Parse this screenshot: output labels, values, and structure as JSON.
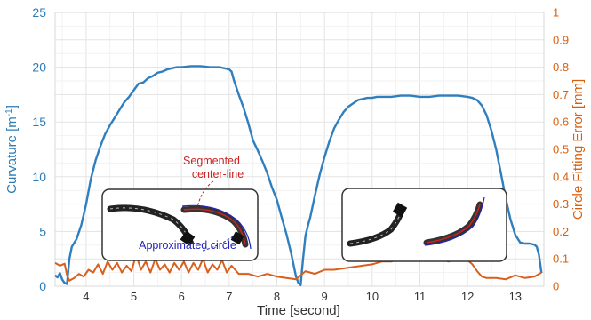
{
  "chart_data": {
    "type": "line",
    "xlabel": "Time [second]",
    "ylabel_left_main": "Curvature [m",
    "ylabel_left_sup": "-1",
    "ylabel_left_end": "]",
    "ylabel_right": "Circle Fitting Error [mm]",
    "xlim": [
      3.35,
      13.6
    ],
    "ylim_left": [
      0,
      25
    ],
    "ylim_right": [
      0,
      1
    ],
    "x_ticks": [
      "4",
      "5",
      "6",
      "7",
      "8",
      "9",
      "10",
      "11",
      "12",
      "13"
    ],
    "y_left_ticks": [
      "0",
      "5",
      "10",
      "15",
      "20",
      "25"
    ],
    "y_right_ticks": [
      "0",
      "0.1",
      "0.2",
      "0.3",
      "0.4",
      "0.5",
      "0.6",
      "0.7",
      "0.8",
      "0.9",
      "1"
    ],
    "grid": true,
    "annotations": {
      "segmented": [
        "Segmented",
        "center-line"
      ],
      "approximated": "Approximated circle"
    },
    "series": [
      {
        "axis": "left",
        "color": "#2f7fbf",
        "x": [
          3.35,
          3.4,
          3.45,
          3.5,
          3.55,
          3.6,
          3.65,
          3.7,
          3.8,
          3.9,
          4.0,
          4.1,
          4.2,
          4.3,
          4.4,
          4.5,
          4.6,
          4.7,
          4.8,
          4.9,
          5.0,
          5.1,
          5.2,
          5.3,
          5.4,
          5.5,
          5.6,
          5.7,
          5.8,
          5.9,
          6.0,
          6.2,
          6.4,
          6.6,
          6.8,
          7.0,
          7.05,
          7.1,
          7.2,
          7.3,
          7.4,
          7.5,
          7.6,
          7.7,
          7.8,
          7.9,
          8.0,
          8.1,
          8.2,
          8.3,
          8.4,
          8.45,
          8.5,
          8.55,
          8.6,
          8.65,
          8.7,
          8.8,
          8.9,
          9.0,
          9.1,
          9.2,
          9.3,
          9.4,
          9.5,
          9.6,
          9.7,
          9.8,
          9.9,
          10.0,
          10.1,
          10.2,
          10.4,
          10.6,
          10.8,
          11.0,
          11.2,
          11.4,
          11.6,
          11.8,
          12.0,
          12.1,
          12.2,
          12.3,
          12.4,
          12.5,
          12.6,
          12.7,
          12.8,
          12.9,
          13.0,
          13.1,
          13.2,
          13.3,
          13.4,
          13.45,
          13.5,
          13.55
        ],
        "y": [
          1.0,
          0.8,
          1.2,
          0.6,
          0.3,
          0.2,
          2.5,
          3.6,
          4.3,
          5.6,
          7.5,
          9.8,
          11.5,
          12.8,
          13.9,
          14.7,
          15.4,
          16.1,
          16.8,
          17.3,
          17.9,
          18.5,
          18.6,
          19.0,
          19.2,
          19.5,
          19.6,
          19.8,
          19.9,
          20.0,
          20.0,
          20.1,
          20.1,
          20.0,
          20.0,
          19.8,
          19.6,
          18.8,
          17.5,
          16.3,
          14.9,
          13.3,
          12.4,
          11.4,
          10.3,
          9.0,
          7.9,
          6.3,
          4.8,
          3.0,
          0.9,
          0.3,
          0.1,
          2.5,
          4.6,
          5.5,
          6.3,
          8.3,
          10.2,
          11.8,
          13.2,
          14.4,
          15.2,
          15.9,
          16.4,
          16.7,
          17.0,
          17.1,
          17.2,
          17.2,
          17.3,
          17.3,
          17.3,
          17.4,
          17.4,
          17.3,
          17.3,
          17.4,
          17.4,
          17.4,
          17.3,
          17.2,
          17.0,
          16.5,
          15.6,
          14.2,
          12.5,
          10.3,
          8.0,
          6.1,
          4.7,
          4.0,
          3.9,
          3.9,
          3.8,
          3.6,
          2.8,
          1.2
        ]
      },
      {
        "axis": "right",
        "color": "#d8601c",
        "x": [
          3.35,
          3.45,
          3.55,
          3.6,
          3.65,
          3.75,
          3.85,
          3.95,
          4.05,
          4.15,
          4.25,
          4.35,
          4.45,
          4.55,
          4.65,
          4.75,
          4.85,
          4.95,
          5.05,
          5.15,
          5.25,
          5.35,
          5.45,
          5.55,
          5.65,
          5.75,
          5.85,
          5.95,
          6.05,
          6.15,
          6.25,
          6.35,
          6.45,
          6.55,
          6.65,
          6.75,
          6.85,
          6.95,
          7.05,
          7.2,
          7.4,
          7.6,
          7.8,
          8.0,
          8.2,
          8.4,
          8.6,
          8.8,
          9.0,
          9.2,
          9.4,
          9.6,
          9.8,
          10.0,
          10.2,
          10.4,
          10.6,
          10.8,
          11.0,
          11.2,
          11.4,
          11.6,
          11.8,
          12.0,
          12.1,
          12.2,
          12.3,
          12.4,
          12.6,
          12.8,
          13.0,
          13.2,
          13.4,
          13.55
        ],
        "y": [
          0.085,
          0.075,
          0.082,
          0.04,
          0.02,
          0.03,
          0.045,
          0.035,
          0.06,
          0.05,
          0.08,
          0.045,
          0.09,
          0.06,
          0.085,
          0.05,
          0.075,
          0.055,
          0.115,
          0.06,
          0.09,
          0.05,
          0.1,
          0.06,
          0.08,
          0.05,
          0.085,
          0.06,
          0.09,
          0.05,
          0.085,
          0.06,
          0.1,
          0.05,
          0.08,
          0.06,
          0.095,
          0.05,
          0.075,
          0.045,
          0.045,
          0.035,
          0.045,
          0.035,
          0.03,
          0.025,
          0.055,
          0.045,
          0.06,
          0.06,
          0.065,
          0.07,
          0.075,
          0.08,
          0.09,
          0.09,
          0.1,
          0.095,
          0.1,
          0.095,
          0.1,
          0.09,
          0.1,
          0.095,
          0.08,
          0.055,
          0.035,
          0.03,
          0.03,
          0.025,
          0.04,
          0.03,
          0.035,
          0.05
        ]
      }
    ]
  }
}
